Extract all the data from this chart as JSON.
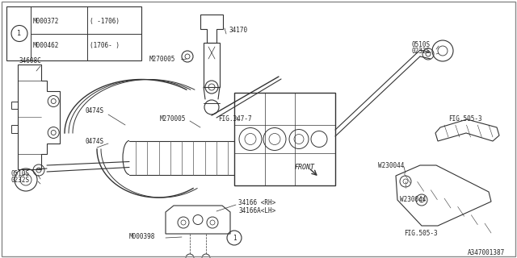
{
  "bg_color": "#ffffff",
  "line_color": "#333333",
  "figsize": [
    6.4,
    3.2
  ],
  "dpi": 100,
  "title_text": "A347001387",
  "table_rows": [
    [
      "M000372",
      "( -1706)"
    ],
    [
      "M000462",
      "(1706- )"
    ]
  ]
}
